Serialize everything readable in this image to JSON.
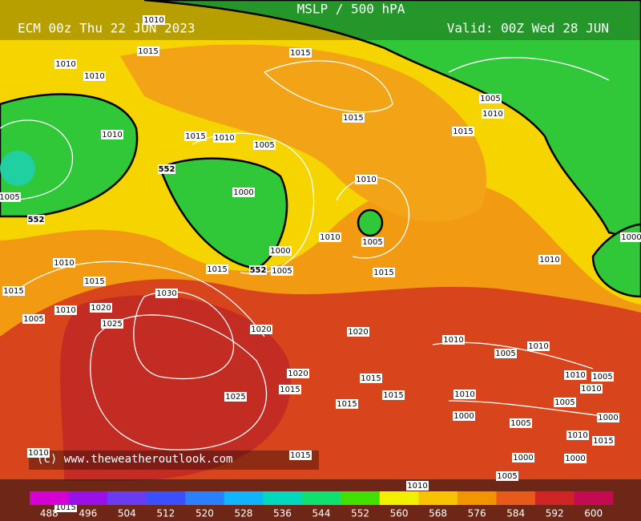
{
  "header": {
    "title": "MSLP / 500 hPA",
    "run": "ECM 00z Thu 22 JUN 2023",
    "valid": "Valid: 00Z Wed 28 JUN"
  },
  "copyright": "(c) www.theweatheroutlook.com",
  "thickness_labels": [
    552,
    552,
    552
  ],
  "isobar_labels": [
    1010,
    1015,
    1015,
    1010,
    1010,
    1005,
    1010,
    1015,
    1015,
    1010,
    1015,
    1010,
    1005,
    1010,
    1000,
    1005,
    1010,
    1005,
    1000,
    1000,
    1010,
    1015,
    1005,
    1010,
    1015,
    1015,
    1030,
    1015,
    1020,
    1010,
    1005,
    1025,
    1020,
    1020,
    1010,
    1005,
    1010,
    1020,
    1015,
    1010,
    1005,
    1015,
    1015,
    1010,
    1010,
    1025,
    1015,
    1000,
    1005,
    1000,
    1005,
    1010,
    1015,
    1000,
    1000,
    1015,
    1010,
    1005,
    1010,
    1015
  ],
  "colorbar": {
    "ticks": [
      488,
      496,
      504,
      512,
      520,
      528,
      536,
      544,
      552,
      560,
      568,
      576,
      584,
      592,
      600
    ],
    "colors": [
      "#d400d4",
      "#9a10e8",
      "#6a3cf0",
      "#3a50ff",
      "#2a80ff",
      "#10b4ff",
      "#00d8c0",
      "#10e070",
      "#40e000",
      "#f0f000",
      "#f8c400",
      "#f29400",
      "#e85a1a",
      "#d02424",
      "#c40a52"
    ]
  }
}
